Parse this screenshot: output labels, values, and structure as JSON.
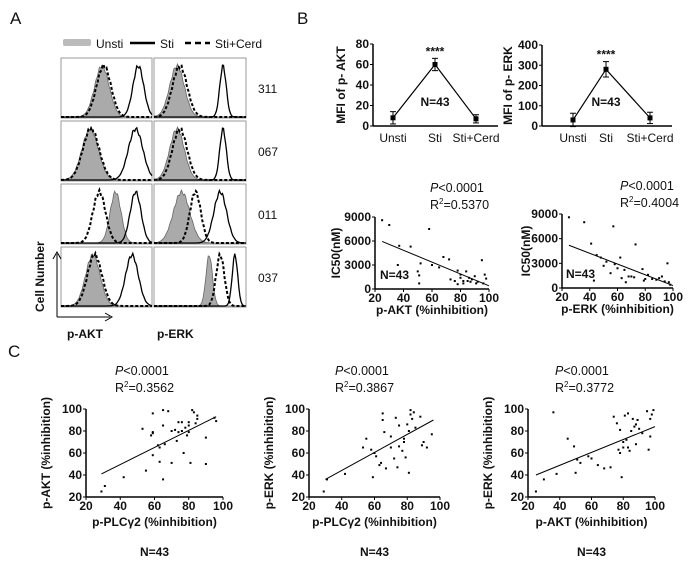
{
  "panels": {
    "a": "A",
    "b": "B",
    "c": "C"
  },
  "panel_a": {
    "legend": {
      "unsti": "Unsti",
      "sti": "Sti",
      "cerd": "Sti+Cerd"
    },
    "colors": {
      "unsti_fill": "#aaaaaa",
      "line": "#000000"
    },
    "y_label": "Cell Number",
    "columns": [
      "p-AKT",
      "p-ERK"
    ],
    "rows": [
      {
        "id": "311",
        "akt": {
          "unsti": [
            0.45,
            0.08
          ],
          "sti": [
            0.85,
            0.06
          ],
          "cerd": [
            0.47,
            0.08
          ]
        },
        "erk": {
          "unsti": [
            0.25,
            0.08
          ],
          "sti": [
            0.75,
            0.035
          ],
          "cerd": [
            0.28,
            0.08
          ]
        }
      },
      {
        "id": "067",
        "akt": {
          "unsti": [
            0.32,
            0.09
          ],
          "sti": [
            0.82,
            0.08
          ],
          "cerd": [
            0.33,
            0.09
          ]
        },
        "erk": {
          "unsti": [
            0.25,
            0.08
          ],
          "sti": [
            0.75,
            0.035
          ],
          "cerd": [
            0.28,
            0.08
          ]
        }
      },
      {
        "id": "011",
        "akt": {
          "unsti": [
            0.6,
            0.06
          ],
          "sti": [
            0.82,
            0.06
          ],
          "cerd": [
            0.42,
            0.07
          ]
        },
        "erk": {
          "unsti": [
            0.3,
            0.09
          ],
          "sti": [
            0.72,
            0.07
          ],
          "cerd": [
            0.45,
            0.06
          ]
        }
      },
      {
        "id": "037",
        "akt": {
          "unsti": [
            0.35,
            0.08
          ],
          "sti": [
            0.78,
            0.07
          ],
          "cerd": [
            0.37,
            0.08
          ]
        },
        "erk": {
          "unsti": [
            0.6,
            0.035
          ],
          "sti": [
            0.88,
            0.03
          ],
          "cerd": [
            0.72,
            0.045
          ]
        }
      }
    ]
  },
  "chart_data": [
    {
      "type": "line",
      "id": "mfi-akt",
      "categories": [
        "Unsti",
        "Sti",
        "Sti+Cerd"
      ],
      "values": [
        8,
        60,
        7
      ],
      "errors": [
        6,
        6,
        4
      ],
      "ylabel": "MFI of p- AKT",
      "ylim": [
        0,
        80
      ],
      "yticks": [
        0,
        20,
        40,
        60,
        80
      ],
      "annotation": "****",
      "n_label": "N=43"
    },
    {
      "type": "line",
      "id": "mfi-erk",
      "categories": [
        "Unsti",
        "Sti",
        "Sti+Cerd"
      ],
      "values": [
        30,
        280,
        40
      ],
      "errors": [
        33,
        38,
        28
      ],
      "ylabel": "MFI of p- ERK",
      "ylim": [
        0,
        400
      ],
      "yticks": [
        0,
        100,
        200,
        300,
        400
      ],
      "annotation": "****",
      "n_label": "N=43"
    },
    {
      "type": "scatter",
      "id": "ic50-akt",
      "xlabel": "p-AKT (%inhibition)",
      "ylabel": "IC50(nM)",
      "xlim": [
        20,
        100
      ],
      "ylim": [
        0,
        9000
      ],
      "xticks": [
        20,
        40,
        60,
        80,
        100
      ],
      "yticks": [
        0,
        3000,
        6000,
        9000
      ],
      "p": "<0.0001",
      "r2": "=0.5370",
      "n_label": "N=43",
      "fit": [
        [
          25,
          5950
        ],
        [
          100,
          400
        ]
      ],
      "points": [
        [
          25,
          8600
        ],
        [
          30,
          8000
        ],
        [
          37,
          5400
        ],
        [
          45,
          5300
        ],
        [
          58,
          7500
        ],
        [
          36,
          3000
        ],
        [
          50,
          2200
        ],
        [
          51,
          1700
        ],
        [
          51,
          700
        ],
        [
          52,
          3200
        ],
        [
          60,
          3000
        ],
        [
          65,
          2700
        ],
        [
          68,
          4000
        ],
        [
          72,
          3700
        ],
        [
          73,
          1200
        ],
        [
          76,
          1000
        ],
        [
          78,
          2300
        ],
        [
          78,
          600
        ],
        [
          80,
          1800
        ],
        [
          80,
          1400
        ],
        [
          82,
          1000
        ],
        [
          82,
          700
        ],
        [
          84,
          2200
        ],
        [
          85,
          1000
        ],
        [
          86,
          1400
        ],
        [
          87,
          900
        ],
        [
          88,
          1200
        ],
        [
          90,
          1600
        ],
        [
          91,
          700
        ],
        [
          92,
          900
        ],
        [
          95,
          3600
        ],
        [
          97,
          1800
        ],
        [
          98,
          1300
        ],
        [
          96,
          700
        ]
      ]
    },
    {
      "type": "scatter",
      "id": "ic50-erk",
      "xlabel": "p-ERK (%inhibition)",
      "ylabel": "IC50(nM)",
      "xlim": [
        20,
        100
      ],
      "ylim": [
        0,
        9000
      ],
      "xticks": [
        20,
        40,
        60,
        80,
        100
      ],
      "yticks": [
        0,
        3000,
        6000,
        9000
      ],
      "p": "<0.0001",
      "r2": "=0.4004",
      "n_label": "N=43",
      "fit": [
        [
          25,
          5200
        ],
        [
          100,
          300
        ]
      ],
      "points": [
        [
          25,
          8600
        ],
        [
          36,
          8000
        ],
        [
          41,
          5400
        ],
        [
          57,
          7500
        ],
        [
          73,
          5300
        ],
        [
          45,
          4000
        ],
        [
          48,
          3700
        ],
        [
          50,
          2700
        ],
        [
          52,
          3200
        ],
        [
          55,
          1800
        ],
        [
          58,
          2900
        ],
        [
          60,
          2400
        ],
        [
          62,
          3700
        ],
        [
          63,
          1200
        ],
        [
          65,
          2200
        ],
        [
          66,
          700
        ],
        [
          68,
          1400
        ],
        [
          70,
          1400
        ],
        [
          72,
          1300
        ],
        [
          78,
          2300
        ],
        [
          79,
          900
        ],
        [
          80,
          1100
        ],
        [
          82,
          1600
        ],
        [
          85,
          1100
        ],
        [
          88,
          1000
        ],
        [
          90,
          1200
        ],
        [
          92,
          1400
        ],
        [
          94,
          800
        ],
        [
          96,
          3000
        ],
        [
          97,
          700
        ],
        [
          98,
          400
        ],
        [
          43,
          900
        ]
      ]
    },
    {
      "type": "scatter",
      "id": "akt-vs-plcg2",
      "xlabel": "p-PLCγ2 (%inhibition)",
      "ylabel": "p-AKT (%inhibition)",
      "xlim": [
        20,
        100
      ],
      "ylim": [
        20,
        100
      ],
      "xticks": [
        20,
        40,
        60,
        80,
        100
      ],
      "yticks": [
        20,
        40,
        60,
        80,
        100
      ],
      "p": "<0.0001",
      "r2": "=0.3562",
      "n_label": "N=43",
      "fit": [
        [
          29,
          41
        ],
        [
          96,
          93
        ]
      ],
      "points": [
        [
          29,
          25
        ],
        [
          31,
          30
        ],
        [
          42,
          38
        ],
        [
          53,
          82
        ],
        [
          55,
          44
        ],
        [
          58,
          76
        ],
        [
          59,
          96
        ],
        [
          59,
          79
        ],
        [
          59,
          78
        ],
        [
          59,
          58
        ],
        [
          63,
          65
        ],
        [
          63,
          52
        ],
        [
          65,
          36
        ],
        [
          65,
          99
        ],
        [
          65,
          85
        ],
        [
          66,
          68
        ],
        [
          68,
          98
        ],
        [
          70,
          51
        ],
        [
          72,
          81
        ],
        [
          73,
          71
        ],
        [
          74,
          88
        ],
        [
          74,
          79
        ],
        [
          76,
          88
        ],
        [
          77,
          60
        ],
        [
          78,
          83
        ],
        [
          79,
          76
        ],
        [
          80,
          88
        ],
        [
          80,
          79
        ],
        [
          80,
          85
        ],
        [
          81,
          51
        ],
        [
          82,
          99
        ],
        [
          83,
          97
        ],
        [
          84,
          87
        ],
        [
          85,
          94
        ],
        [
          85,
          91
        ],
        [
          90,
          74
        ],
        [
          90,
          50
        ],
        [
          95,
          92
        ],
        [
          96,
          89
        ],
        [
          76,
          80
        ],
        [
          70,
          80
        ],
        [
          62,
          67
        ]
      ]
    },
    {
      "type": "scatter",
      "id": "erk-vs-plcg2",
      "xlabel": "p-PLCγ2 (%inhibition)",
      "ylabel": "p-ERK (%inhibition)",
      "xlim": [
        20,
        100
      ],
      "ylim": [
        20,
        100
      ],
      "xticks": [
        20,
        40,
        60,
        80,
        100
      ],
      "yticks": [
        20,
        40,
        60,
        80,
        100
      ],
      "p": "<0.0001",
      "r2": "=0.3867",
      "n_label": "N=43",
      "fit": [
        [
          30,
          36
        ],
        [
          96,
          90
        ]
      ],
      "points": [
        [
          29,
          25
        ],
        [
          31,
          36
        ],
        [
          42,
          41
        ],
        [
          53,
          65
        ],
        [
          55,
          73
        ],
        [
          58,
          63
        ],
        [
          59,
          38
        ],
        [
          60,
          60
        ],
        [
          61,
          57
        ],
        [
          63,
          49
        ],
        [
          64,
          51
        ],
        [
          65,
          96
        ],
        [
          65,
          90
        ],
        [
          66,
          79
        ],
        [
          67,
          46
        ],
        [
          70,
          75
        ],
        [
          72,
          55
        ],
        [
          73,
          92
        ],
        [
          74,
          47
        ],
        [
          75,
          66
        ],
        [
          75,
          85
        ],
        [
          77,
          62
        ],
        [
          78,
          70
        ],
        [
          79,
          56
        ],
        [
          80,
          86
        ],
        [
          81,
          80
        ],
        [
          81,
          42
        ],
        [
          82,
          95
        ],
        [
          82,
          99
        ],
        [
          83,
          91
        ],
        [
          84,
          97
        ],
        [
          85,
          83
        ],
        [
          88,
          93
        ],
        [
          89,
          67
        ],
        [
          90,
          70
        ],
        [
          92,
          65
        ],
        [
          95,
          77
        ],
        [
          78,
          73
        ],
        [
          70,
          65
        ]
      ]
    },
    {
      "type": "scatter",
      "id": "erk-vs-akt",
      "xlabel": "p-AKT (%inhibition)",
      "ylabel": "p-ERK (%inhibition)",
      "xlim": [
        20,
        100
      ],
      "ylim": [
        20,
        100
      ],
      "xticks": [
        20,
        40,
        60,
        80,
        100
      ],
      "yticks": [
        20,
        40,
        60,
        80,
        100
      ],
      "p": "<0.0001",
      "r2": "=0.3772",
      "n_label": "N=43",
      "fit": [
        [
          25,
          40
        ],
        [
          100,
          84
        ]
      ],
      "points": [
        [
          25,
          25
        ],
        [
          30,
          36
        ],
        [
          36,
          97
        ],
        [
          38,
          41
        ],
        [
          45,
          73
        ],
        [
          49,
          66
        ],
        [
          50,
          42
        ],
        [
          51,
          54
        ],
        [
          53,
          51
        ],
        [
          58,
          57
        ],
        [
          60,
          55
        ],
        [
          64,
          49
        ],
        [
          68,
          46
        ],
        [
          72,
          47
        ],
        [
          74,
          93
        ],
        [
          76,
          87
        ],
        [
          77,
          63
        ],
        [
          78,
          81
        ],
        [
          78,
          60
        ],
        [
          79,
          38
        ],
        [
          80,
          65
        ],
        [
          80,
          70
        ],
        [
          81,
          94
        ],
        [
          82,
          72
        ],
        [
          83,
          65
        ],
        [
          83,
          96
        ],
        [
          84,
          62
        ],
        [
          85,
          80
        ],
        [
          86,
          91
        ],
        [
          87,
          84
        ],
        [
          88,
          86
        ],
        [
          88,
          68
        ],
        [
          89,
          90
        ],
        [
          90,
          82
        ],
        [
          92,
          78
        ],
        [
          95,
          98
        ],
        [
          96,
          63
        ],
        [
          97,
          75
        ],
        [
          98,
          95
        ],
        [
          99,
          99
        ],
        [
          97,
          91
        ]
      ]
    }
  ]
}
